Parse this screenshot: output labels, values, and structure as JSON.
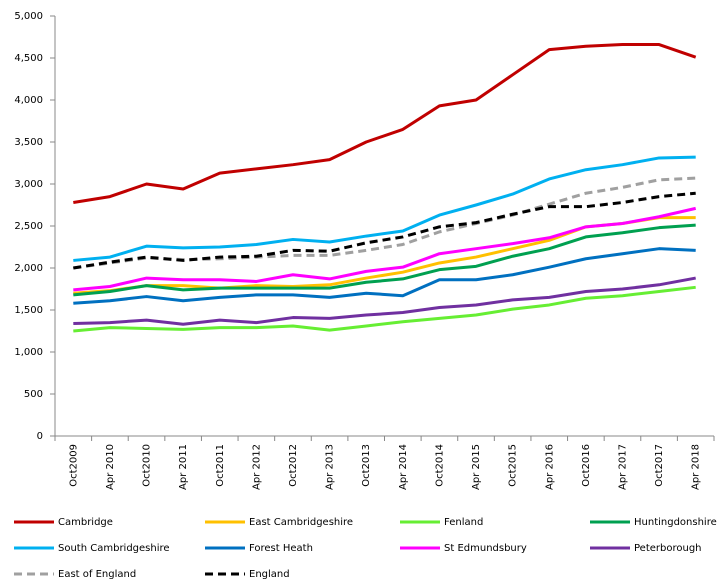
{
  "chart_data": {
    "type": "line",
    "categories": [
      "Oct2009",
      "Apr 2010",
      "Oct2010",
      "Apr 2011",
      "Oct2011",
      "Apr 2012",
      "Oct2012",
      "Apr 2013",
      "Oct2013",
      "Apr 2014",
      "Oct2014",
      "Apr 2015",
      "Oct2015",
      "Apr 2016",
      "Oct2016",
      "Apr 2017",
      "Oct2017",
      "Apr 2018"
    ],
    "ylim": [
      0,
      5000
    ],
    "yticks": [
      0,
      500,
      {
        "value": 1000,
        "label": "1,000"
      },
      {
        "value": 1500,
        "label": "1,500"
      },
      {
        "value": 2000,
        "label": "2,000"
      },
      {
        "value": 2500,
        "label": "2,500"
      },
      {
        "value": 3000,
        "label": "3,000"
      },
      {
        "value": 3500,
        "label": "3,500"
      },
      {
        "value": 4000,
        "label": "4,000"
      },
      {
        "value": 4500,
        "label": "4,500"
      },
      {
        "value": 5000,
        "label": "5,000"
      }
    ],
    "grid": false,
    "series": [
      {
        "name": "Cambridge",
        "color": "#c00000",
        "dashed": false,
        "values": [
          2780,
          2850,
          3000,
          2940,
          3130,
          3180,
          3230,
          3290,
          3500,
          3650,
          3930,
          4000,
          4300,
          4600,
          4640,
          4660,
          4660,
          4510
        ]
      },
      {
        "name": "East Cambridgeshire",
        "color": "#ffc000",
        "dashed": false,
        "values": [
          1700,
          1730,
          1790,
          1790,
          1760,
          1790,
          1780,
          1800,
          1880,
          1950,
          2060,
          2130,
          2230,
          2330,
          2490,
          2530,
          2600,
          2600
        ]
      },
      {
        "name": "Fenland",
        "color": "#66ee33",
        "dashed": false,
        "values": [
          1250,
          1290,
          1280,
          1270,
          1290,
          1290,
          1310,
          1260,
          1310,
          1360,
          1400,
          1440,
          1510,
          1560,
          1640,
          1670,
          1720,
          1770
        ]
      },
      {
        "name": "Huntingdonshire",
        "color": "#00a050",
        "dashed": false,
        "values": [
          1680,
          1720,
          1790,
          1740,
          1760,
          1760,
          1760,
          1760,
          1830,
          1870,
          1980,
          2020,
          2140,
          2230,
          2370,
          2420,
          2480,
          2510
        ]
      },
      {
        "name": "South Cambridgeshire",
        "color": "#00b0f0",
        "dashed": false,
        "values": [
          2090,
          2130,
          2260,
          2240,
          2250,
          2280,
          2340,
          2310,
          2380,
          2440,
          2630,
          2750,
          2880,
          3060,
          3170,
          3230,
          3310,
          3320
        ]
      },
      {
        "name": "Forest Heath",
        "color": "#0070c0",
        "dashed": false,
        "values": [
          1580,
          1610,
          1660,
          1610,
          1650,
          1680,
          1680,
          1650,
          1700,
          1670,
          1860,
          1860,
          1920,
          2010,
          2110,
          2170,
          2230,
          2210
        ]
      },
      {
        "name": "St Edmundsbury",
        "color": "#ff00ff",
        "dashed": false,
        "values": [
          1740,
          1780,
          1880,
          1860,
          1860,
          1840,
          1920,
          1870,
          1960,
          2010,
          2170,
          2230,
          2290,
          2360,
          2490,
          2530,
          2610,
          2710
        ]
      },
      {
        "name": "Peterborough",
        "color": "#7030a0",
        "dashed": false,
        "values": [
          1340,
          1350,
          1380,
          1330,
          1380,
          1350,
          1410,
          1400,
          1440,
          1470,
          1530,
          1560,
          1620,
          1650,
          1720,
          1750,
          1800,
          1880
        ]
      },
      {
        "name": "East of England",
        "color": "#a0a0a0",
        "dashed": true,
        "values": [
          2000,
          2060,
          2120,
          2100,
          2110,
          2130,
          2150,
          2150,
          2210,
          2280,
          2430,
          2530,
          2630,
          2760,
          2890,
          2960,
          3050,
          3070
        ]
      },
      {
        "name": "England",
        "color": "#000000",
        "dashed": true,
        "values": [
          2000,
          2070,
          2130,
          2090,
          2130,
          2140,
          2210,
          2200,
          2300,
          2370,
          2490,
          2540,
          2640,
          2730,
          2730,
          2780,
          2850,
          2890
        ]
      }
    ]
  }
}
